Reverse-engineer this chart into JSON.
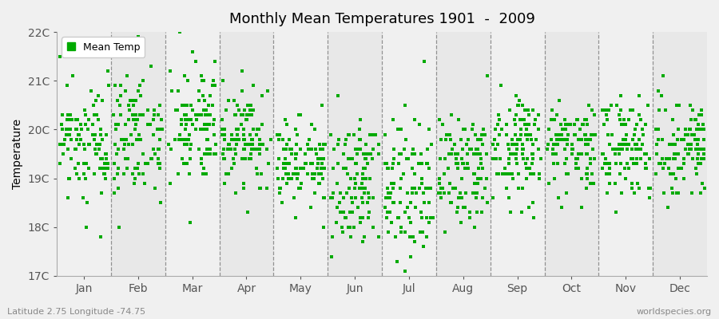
{
  "title": "Monthly Mean Temperatures 1901  -  2009",
  "ylabel": "Temperature",
  "xlabel_months": [
    "Jan",
    "Feb",
    "Mar",
    "Apr",
    "May",
    "Jun",
    "Jul",
    "Aug",
    "Sep",
    "Oct",
    "Nov",
    "Dec"
  ],
  "footer_left": "Latitude 2.75 Longitude -74.75",
  "footer_right": "worldspecies.org",
  "legend_label": "Mean Temp",
  "marker_color": "#00aa00",
  "background_color": "#f0f0f0",
  "plot_bg_light": "#f0f0f0",
  "plot_bg_dark": "#e8e8e8",
  "ylim": [
    17.0,
    22.0
  ],
  "yticks": [
    17,
    18,
    19,
    20,
    21,
    22
  ],
  "ytick_labels": [
    "17C",
    "18C",
    "19C",
    "20C",
    "21C",
    "22C"
  ],
  "num_years": 109,
  "monthly_means": [
    19.65,
    19.9,
    20.05,
    19.75,
    19.35,
    18.9,
    18.75,
    19.1,
    19.6,
    19.65,
    19.6,
    19.65
  ],
  "monthly_stds": [
    0.55,
    0.65,
    0.6,
    0.5,
    0.45,
    0.65,
    0.7,
    0.55,
    0.55,
    0.5,
    0.48,
    0.5
  ],
  "seed": 17
}
